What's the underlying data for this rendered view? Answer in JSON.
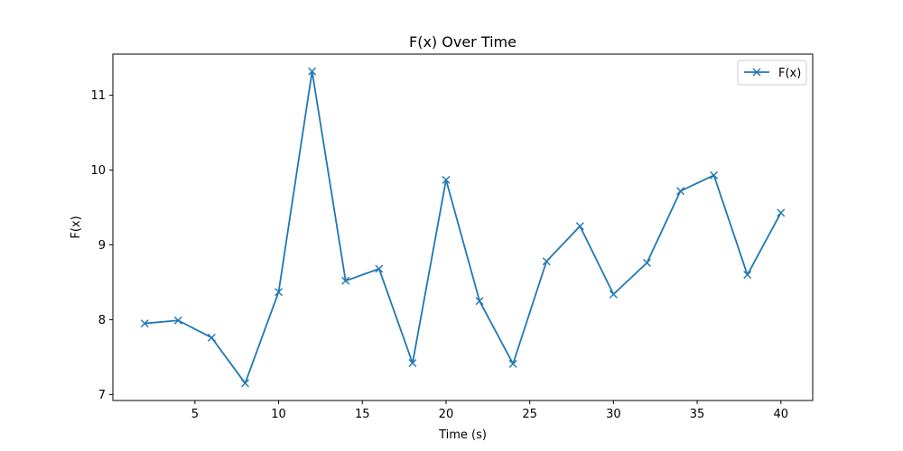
{
  "chart_data": {
    "type": "line",
    "title": "F(x) Over Time",
    "xlabel": "Time (s)",
    "ylabel": "F(x)",
    "xlim": [
      0.1,
      41.9
    ],
    "ylim": [
      6.92,
      11.55
    ],
    "xticks": [
      5,
      10,
      15,
      20,
      25,
      30,
      35,
      40
    ],
    "yticks": [
      7,
      8,
      9,
      10,
      11
    ],
    "grid": false,
    "legend_position": "top-right",
    "series": [
      {
        "name": "F(x)",
        "color": "#1f77b4",
        "marker": "x",
        "x": [
          2,
          4,
          6,
          8,
          10,
          12,
          14,
          16,
          18,
          20,
          22,
          24,
          26,
          28,
          30,
          32,
          34,
          36,
          38,
          40
        ],
        "y": [
          7.95,
          7.99,
          7.76,
          7.15,
          8.37,
          11.32,
          8.52,
          8.68,
          7.42,
          9.87,
          8.25,
          7.41,
          8.78,
          9.25,
          8.34,
          8.76,
          9.72,
          9.93,
          8.6,
          9.43
        ]
      }
    ]
  }
}
